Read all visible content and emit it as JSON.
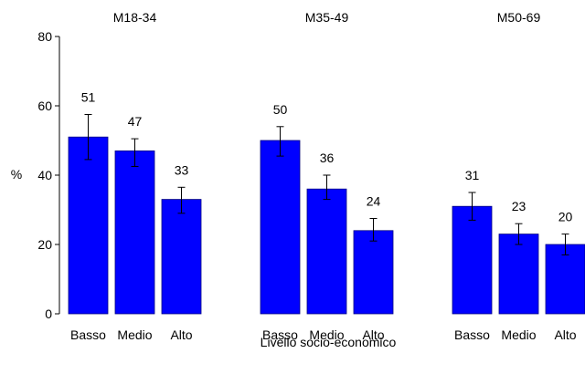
{
  "chart_data": {
    "type": "bar",
    "ylabel": "%",
    "xlabel": "Livello socio-economico",
    "ylim": [
      0,
      80
    ],
    "yticks": [
      0,
      20,
      40,
      60,
      80
    ],
    "bar_color": "#0000ff",
    "groups": [
      {
        "name": "M18-34",
        "categories": [
          "Basso",
          "Medio",
          "Alto"
        ],
        "values": [
          51,
          47,
          33
        ],
        "labels": [
          "51",
          "47",
          "33"
        ],
        "err_low": [
          44.5,
          42.5,
          29
        ],
        "err_high": [
          57.5,
          50.5,
          36.5
        ]
      },
      {
        "name": "M35-49",
        "categories": [
          "Basso",
          "Medio",
          "Alto"
        ],
        "values": [
          50,
          36,
          24
        ],
        "labels": [
          "50",
          "36",
          "24"
        ],
        "err_low": [
          45.5,
          33,
          21
        ],
        "err_high": [
          54,
          40,
          27.5
        ]
      },
      {
        "name": "M50-69",
        "categories": [
          "Basso",
          "Medio",
          "Alto"
        ],
        "values": [
          31,
          23,
          20
        ],
        "labels": [
          "31",
          "23",
          "20"
        ],
        "err_low": [
          27,
          20,
          17
        ],
        "err_high": [
          35,
          26,
          23
        ]
      }
    ]
  }
}
